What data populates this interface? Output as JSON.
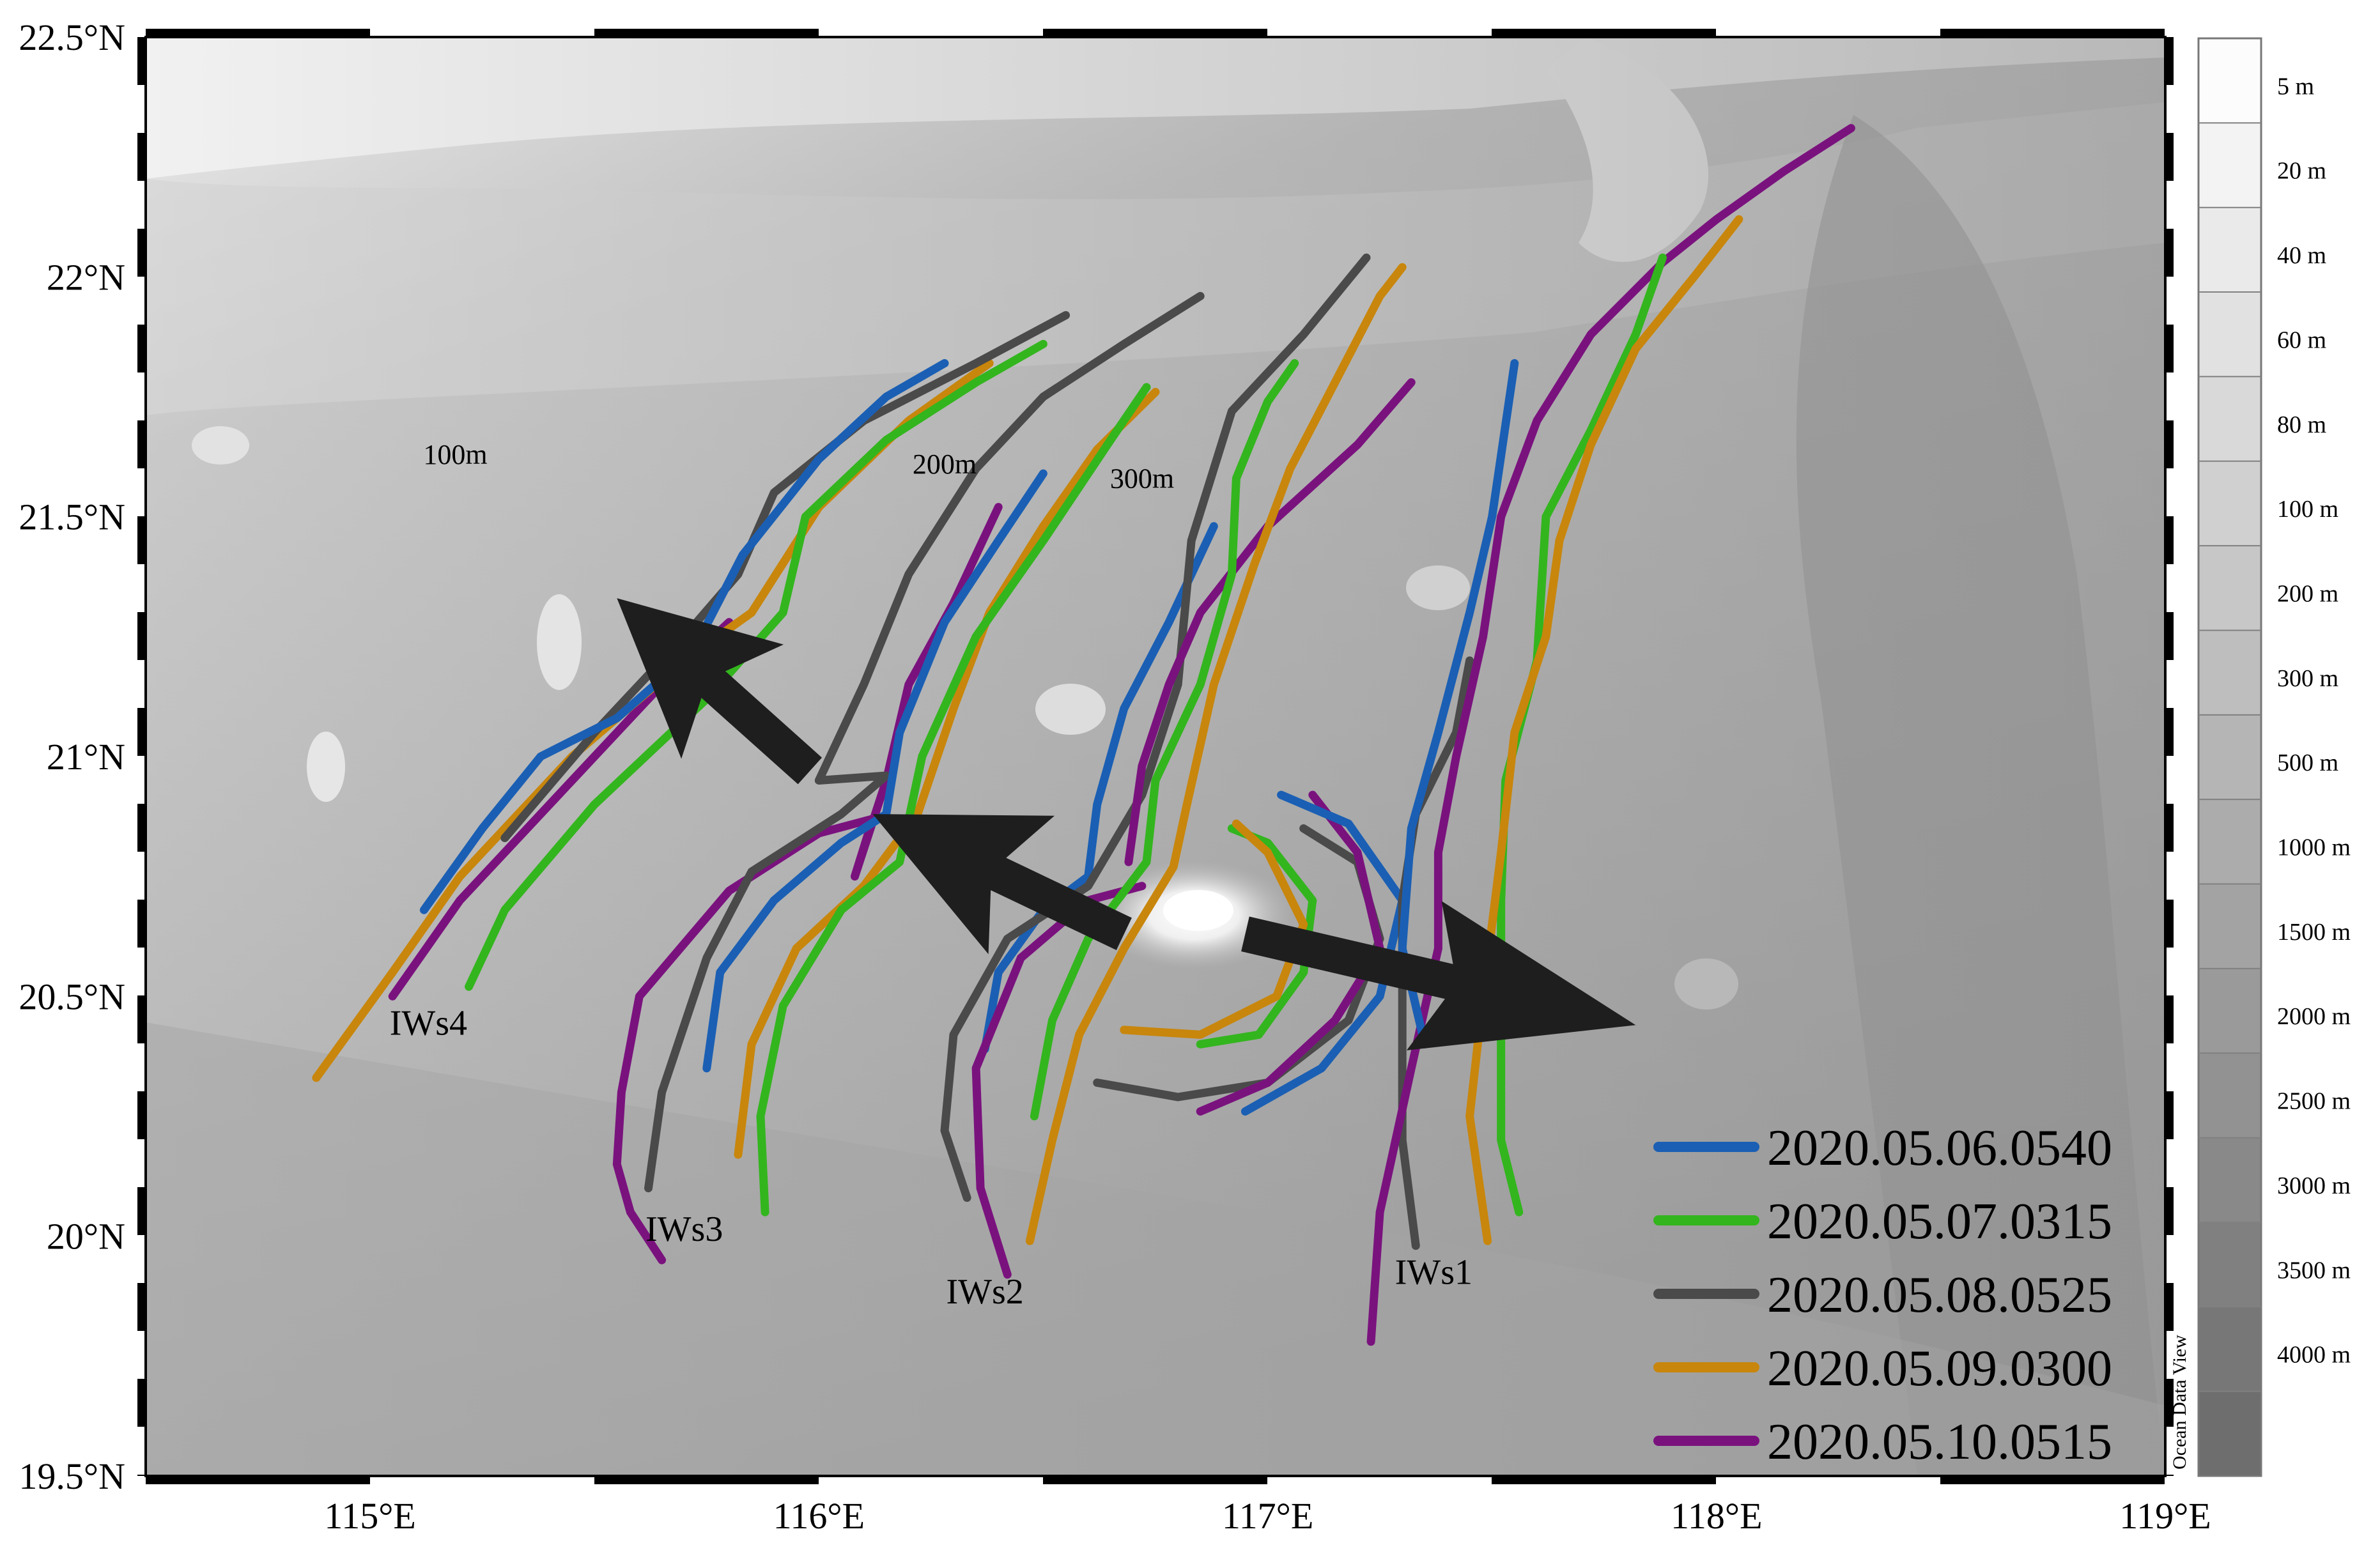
{
  "map": {
    "lon_range": [
      114.5,
      119.0
    ],
    "lat_range": [
      19.5,
      22.5
    ],
    "x_ticks": [
      {
        "value": 115,
        "label": "115°E"
      },
      {
        "value": 116,
        "label": "116°E"
      },
      {
        "value": 117,
        "label": "117°E"
      },
      {
        "value": 118,
        "label": "118°E"
      },
      {
        "value": 119,
        "label": "119°E"
      }
    ],
    "y_ticks": [
      {
        "value": 22.5,
        "label": "22.5°N"
      },
      {
        "value": 22.0,
        "label": "22°N"
      },
      {
        "value": 21.5,
        "label": "21.5°N"
      },
      {
        "value": 21.0,
        "label": "21°N"
      },
      {
        "value": 20.5,
        "label": "20.5°N"
      },
      {
        "value": 20.0,
        "label": "20°N"
      },
      {
        "value": 19.5,
        "label": "19.5°N"
      }
    ],
    "contour_labels": [
      {
        "text": "100m",
        "lon": 115.19,
        "lat": 21.61
      },
      {
        "text": "200m",
        "lon": 116.28,
        "lat": 21.59
      },
      {
        "text": "300m",
        "lon": 116.72,
        "lat": 21.56
      }
    ],
    "wave_labels": [
      {
        "text": "IWs4",
        "lon": 115.13,
        "lat": 20.42
      },
      {
        "text": "IWs3",
        "lon": 115.7,
        "lat": 19.99
      },
      {
        "text": "IWs2",
        "lon": 116.37,
        "lat": 19.86
      },
      {
        "text": "IWs1",
        "lon": 117.37,
        "lat": 19.9
      }
    ]
  },
  "colorbar": {
    "title": "Ocean Data View",
    "labels": [
      "5 m",
      "20 m",
      "40 m",
      "60 m",
      "80 m",
      "100 m",
      "200 m",
      "300 m",
      "500 m",
      "1000 m",
      "1500 m",
      "2000 m",
      "2500 m",
      "3000 m",
      "3500 m",
      "4000 m"
    ]
  },
  "legend": {
    "items": [
      {
        "label": "2020.05.06.0540",
        "color": "#1a5fb4"
      },
      {
        "label": "2020.05.07.0315",
        "color": "#33b51e"
      },
      {
        "label": "2020.05.08.0525",
        "color": "#4a4a4a"
      },
      {
        "label": "2020.05.09.0300",
        "color": "#c8860c"
      },
      {
        "label": "2020.05.10.0515",
        "color": "#7a127e"
      }
    ]
  },
  "wave_fronts": [
    {
      "series": "2020.05.10.0515",
      "group": "IWs4",
      "points": [
        [
          115.05,
          20.5
        ],
        [
          115.2,
          20.7
        ],
        [
          115.45,
          20.95
        ],
        [
          115.65,
          21.15
        ],
        [
          115.8,
          21.28
        ]
      ]
    },
    {
      "series": "2020.05.09.0300",
      "group": "IWs4",
      "points": [
        [
          114.88,
          20.33
        ],
        [
          115.05,
          20.55
        ],
        [
          115.2,
          20.75
        ],
        [
          115.45,
          21.0
        ],
        [
          115.7,
          21.2
        ],
        [
          115.85,
          21.3
        ],
        [
          116.0,
          21.52
        ],
        [
          116.2,
          21.7
        ],
        [
          116.38,
          21.82
        ]
      ]
    },
    {
      "series": "2020.05.08.0525",
      "group": "IWs4",
      "points": [
        [
          115.3,
          20.83
        ],
        [
          115.5,
          21.05
        ],
        [
          115.7,
          21.25
        ],
        [
          115.82,
          21.38
        ],
        [
          115.9,
          21.55
        ],
        [
          116.1,
          21.7
        ],
        [
          116.35,
          21.82
        ],
        [
          116.55,
          21.92
        ]
      ]
    },
    {
      "series": "2020.05.07.0315",
      "group": "IWs4",
      "points": [
        [
          115.22,
          20.52
        ],
        [
          115.3,
          20.68
        ],
        [
          115.5,
          20.9
        ],
        [
          115.75,
          21.12
        ],
        [
          115.92,
          21.3
        ],
        [
          115.97,
          21.5
        ],
        [
          116.15,
          21.66
        ],
        [
          116.35,
          21.78
        ],
        [
          116.5,
          21.86
        ]
      ]
    },
    {
      "series": "2020.05.06.0540",
      "group": "IWs4",
      "points": [
        [
          115.12,
          20.68
        ],
        [
          115.25,
          20.85
        ],
        [
          115.38,
          21.0
        ],
        [
          115.55,
          21.08
        ],
        [
          115.72,
          21.22
        ],
        [
          115.83,
          21.42
        ],
        [
          116.0,
          21.62
        ],
        [
          116.15,
          21.75
        ],
        [
          116.28,
          21.82
        ]
      ]
    },
    {
      "series": "2020.05.10.0515",
      "group": "IWs3",
      "points": [
        [
          115.65,
          19.95
        ],
        [
          115.58,
          20.05
        ],
        [
          115.55,
          20.15
        ],
        [
          115.56,
          20.3
        ],
        [
          115.6,
          20.5
        ],
        [
          115.8,
          20.72
        ],
        [
          116.0,
          20.84
        ],
        [
          116.12,
          20.87
        ],
        [
          116.08,
          20.75
        ],
        [
          116.15,
          20.95
        ],
        [
          116.2,
          21.15
        ],
        [
          116.3,
          21.32
        ],
        [
          116.4,
          21.52
        ]
      ]
    },
    {
      "series": "2020.05.08.0525",
      "group": "IWs3",
      "points": [
        [
          115.62,
          20.1
        ],
        [
          115.65,
          20.3
        ],
        [
          115.75,
          20.58
        ],
        [
          115.85,
          20.76
        ],
        [
          116.05,
          20.88
        ],
        [
          116.15,
          20.96
        ],
        [
          116.0,
          20.95
        ],
        [
          116.1,
          21.15
        ],
        [
          116.2,
          21.38
        ],
        [
          116.35,
          21.6
        ],
        [
          116.5,
          21.75
        ],
        [
          116.68,
          21.86
        ],
        [
          116.85,
          21.96
        ]
      ]
    },
    {
      "series": "2020.05.09.0300",
      "group": "IWs3",
      "points": [
        [
          115.82,
          20.17
        ],
        [
          115.85,
          20.4
        ],
        [
          115.95,
          20.6
        ],
        [
          116.1,
          20.73
        ],
        [
          116.22,
          20.88
        ],
        [
          116.3,
          21.1
        ],
        [
          116.38,
          21.3
        ],
        [
          116.5,
          21.48
        ],
        [
          116.62,
          21.64
        ],
        [
          116.75,
          21.76
        ]
      ]
    },
    {
      "series": "2020.05.07.0315",
      "group": "IWs3",
      "points": [
        [
          115.88,
          20.05
        ],
        [
          115.87,
          20.25
        ],
        [
          115.92,
          20.48
        ],
        [
          116.05,
          20.68
        ],
        [
          116.18,
          20.78
        ],
        [
          116.23,
          21.0
        ],
        [
          116.35,
          21.25
        ],
        [
          116.5,
          21.45
        ],
        [
          116.65,
          21.66
        ],
        [
          116.73,
          21.77
        ]
      ]
    },
    {
      "series": "2020.05.06.0540",
      "group": "IWs3",
      "points": [
        [
          115.75,
          20.35
        ],
        [
          115.78,
          20.55
        ],
        [
          115.9,
          20.7
        ],
        [
          116.05,
          20.82
        ],
        [
          116.15,
          20.88
        ],
        [
          116.18,
          21.05
        ],
        [
          116.28,
          21.28
        ],
        [
          116.4,
          21.45
        ],
        [
          116.5,
          21.59
        ]
      ]
    },
    {
      "series": "2020.05.06.0540",
      "group": "IWs2",
      "points": [
        [
          116.37,
          20.39
        ],
        [
          116.4,
          20.55
        ],
        [
          116.5,
          20.68
        ],
        [
          116.6,
          20.75
        ],
        [
          116.62,
          20.9
        ],
        [
          116.68,
          21.1
        ],
        [
          116.78,
          21.28
        ],
        [
          116.88,
          21.48
        ]
      ]
    },
    {
      "series": "2020.05.08.0525",
      "group": "IWs2",
      "points": [
        [
          116.33,
          20.08
        ],
        [
          116.28,
          20.22
        ],
        [
          116.3,
          20.42
        ],
        [
          116.42,
          20.62
        ],
        [
          116.6,
          20.73
        ],
        [
          116.72,
          20.92
        ],
        [
          116.8,
          21.15
        ],
        [
          116.83,
          21.45
        ],
        [
          116.92,
          21.72
        ],
        [
          117.08,
          21.88
        ],
        [
          117.22,
          22.04
        ]
      ]
    },
    {
      "series": "2020.05.10.0515",
      "group": "IWs2",
      "points": [
        [
          116.42,
          19.92
        ],
        [
          116.36,
          20.1
        ],
        [
          116.35,
          20.35
        ],
        [
          116.45,
          20.58
        ],
        [
          116.6,
          20.7
        ],
        [
          116.72,
          20.73
        ]
      ]
    },
    {
      "series": "2020.05.10.0515",
      "group": "IWs2",
      "points": [
        [
          116.69,
          20.78
        ],
        [
          116.72,
          20.98
        ],
        [
          116.78,
          21.15
        ],
        [
          116.85,
          21.3
        ],
        [
          117.0,
          21.48
        ],
        [
          117.2,
          21.65
        ],
        [
          117.32,
          21.78
        ]
      ]
    },
    {
      "series": "2020.05.07.0315",
      "group": "IWs2",
      "points": [
        [
          116.48,
          20.25
        ],
        [
          116.52,
          20.45
        ],
        [
          116.6,
          20.62
        ],
        [
          116.73,
          20.78
        ],
        [
          116.75,
          20.95
        ],
        [
          116.85,
          21.15
        ],
        [
          116.92,
          21.38
        ],
        [
          116.93,
          21.58
        ],
        [
          117.0,
          21.74
        ],
        [
          117.06,
          21.82
        ]
      ]
    },
    {
      "series": "2020.05.09.0300",
      "group": "IWs2",
      "points": [
        [
          116.47,
          19.99
        ],
        [
          116.52,
          20.2
        ],
        [
          116.58,
          20.42
        ],
        [
          116.68,
          20.6
        ],
        [
          116.79,
          20.77
        ],
        [
          116.82,
          20.9
        ],
        [
          116.88,
          21.15
        ],
        [
          116.97,
          21.4
        ],
        [
          117.05,
          21.6
        ],
        [
          117.15,
          21.78
        ],
        [
          117.25,
          21.96
        ],
        [
          117.3,
          22.02
        ]
      ]
    },
    {
      "series": "2020.05.08.0525",
      "group": "IWs1",
      "points": [
        [
          116.62,
          20.32
        ],
        [
          116.8,
          20.29
        ],
        [
          117.0,
          20.32
        ],
        [
          117.18,
          20.45
        ],
        [
          117.25,
          20.62
        ],
        [
          117.2,
          20.78
        ],
        [
          117.08,
          20.85
        ]
      ]
    },
    {
      "series": "2020.05.10.0515",
      "group": "IWs1",
      "points": [
        [
          116.85,
          20.26
        ],
        [
          117.0,
          20.32
        ],
        [
          117.15,
          20.45
        ],
        [
          117.25,
          20.6
        ],
        [
          117.2,
          20.8
        ],
        [
          117.1,
          20.92
        ]
      ]
    },
    {
      "series": "2020.05.06.0540",
      "group": "IWs1",
      "points": [
        [
          116.95,
          20.26
        ],
        [
          117.12,
          20.35
        ],
        [
          117.25,
          20.5
        ],
        [
          117.3,
          20.7
        ],
        [
          117.18,
          20.86
        ],
        [
          117.03,
          20.92
        ]
      ]
    },
    {
      "series": "2020.05.07.0315",
      "group": "IWs1",
      "points": [
        [
          116.85,
          20.4
        ],
        [
          116.98,
          20.42
        ],
        [
          117.08,
          20.55
        ],
        [
          117.1,
          20.7
        ],
        [
          117.0,
          20.82
        ],
        [
          116.92,
          20.85
        ]
      ]
    },
    {
      "series": "2020.05.09.0300",
      "group": "IWs1",
      "points": [
        [
          116.68,
          20.43
        ],
        [
          116.85,
          20.42
        ],
        [
          117.02,
          20.5
        ],
        [
          117.08,
          20.65
        ],
        [
          117.0,
          20.8
        ],
        [
          116.93,
          20.86
        ]
      ]
    },
    {
      "series": "2020.05.08.0525",
      "group": "IWs1",
      "points": [
        [
          117.33,
          19.98
        ],
        [
          117.3,
          20.2
        ],
        [
          117.3,
          20.45
        ],
        [
          117.3,
          20.7
        ],
        [
          117.33,
          20.88
        ],
        [
          117.42,
          21.05
        ],
        [
          117.45,
          21.2
        ]
      ]
    },
    {
      "series": "2020.05.10.0515",
      "group": "IWs1",
      "points": [
        [
          117.23,
          19.78
        ],
        [
          117.25,
          20.05
        ],
        [
          117.32,
          20.35
        ],
        [
          117.38,
          20.6
        ],
        [
          117.38,
          20.8
        ],
        [
          117.42,
          21.0
        ],
        [
          117.48,
          21.25
        ],
        [
          117.52,
          21.5
        ],
        [
          117.6,
          21.7
        ],
        [
          117.72,
          21.88
        ],
        [
          117.88,
          22.03
        ],
        [
          118.0,
          22.12
        ],
        [
          118.15,
          22.22
        ],
        [
          118.3,
          22.31
        ]
      ]
    },
    {
      "series": "2020.05.06.0540",
      "group": "IWs1",
      "points": [
        [
          117.35,
          20.4
        ],
        [
          117.3,
          20.6
        ],
        [
          117.32,
          20.85
        ],
        [
          117.38,
          21.05
        ],
        [
          117.45,
          21.3
        ],
        [
          117.5,
          21.5
        ],
        [
          117.55,
          21.82
        ]
      ]
    },
    {
      "series": "2020.05.07.0315",
      "group": "IWs1",
      "points": [
        [
          117.56,
          20.05
        ],
        [
          117.52,
          20.2
        ],
        [
          117.52,
          20.45
        ],
        [
          117.52,
          20.7
        ],
        [
          117.53,
          20.95
        ],
        [
          117.6,
          21.2
        ],
        [
          117.62,
          21.5
        ],
        [
          117.72,
          21.68
        ],
        [
          117.82,
          21.88
        ],
        [
          117.88,
          22.04
        ]
      ]
    },
    {
      "series": "2020.05.09.0300",
      "group": "IWs1",
      "points": [
        [
          117.49,
          19.99
        ],
        [
          117.45,
          20.25
        ],
        [
          117.48,
          20.5
        ],
        [
          117.52,
          20.8
        ],
        [
          117.55,
          21.05
        ],
        [
          117.62,
          21.25
        ],
        [
          117.65,
          21.45
        ],
        [
          117.72,
          21.65
        ],
        [
          117.82,
          21.85
        ],
        [
          117.95,
          22.0
        ],
        [
          118.05,
          22.12
        ]
      ]
    }
  ],
  "arrows": [
    {
      "from": [
        115.98,
        20.97
      ],
      "to": [
        115.55,
        21.33
      ]
    },
    {
      "from": [
        116.68,
        20.63
      ],
      "to": [
        116.12,
        20.88
      ]
    },
    {
      "from": [
        116.95,
        20.63
      ],
      "to": [
        117.82,
        20.44
      ]
    }
  ]
}
